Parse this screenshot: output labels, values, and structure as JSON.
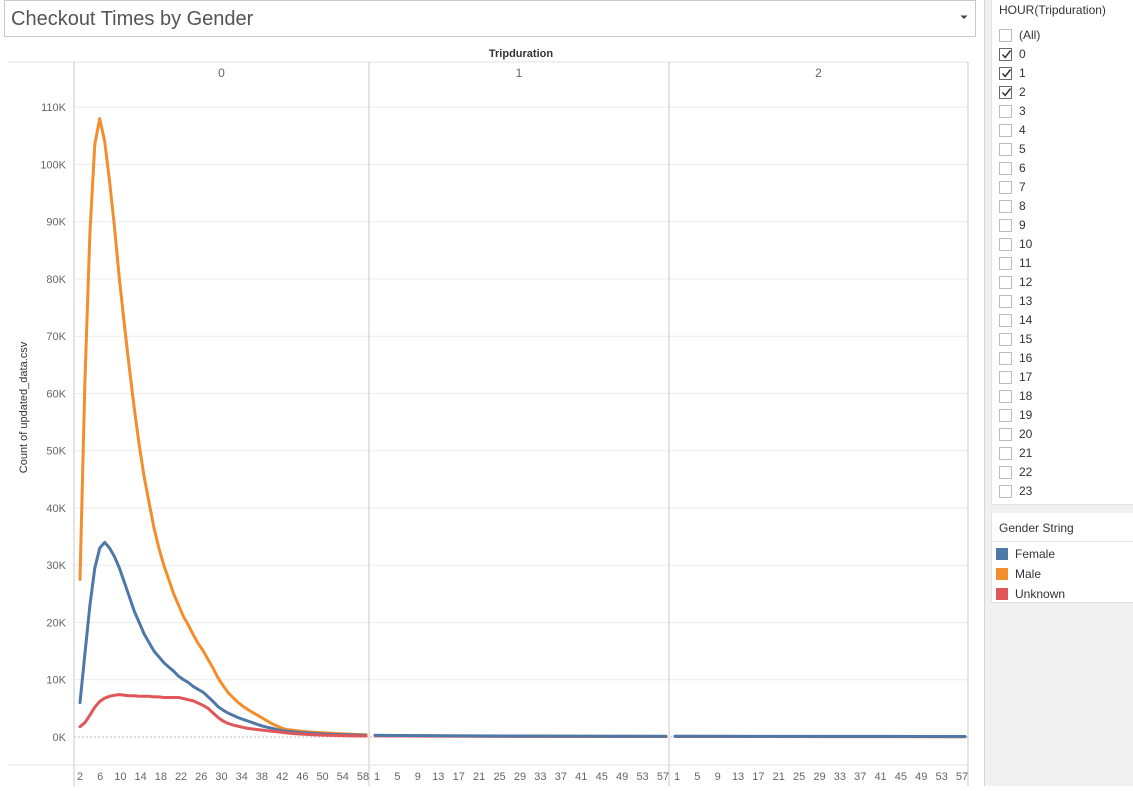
{
  "title": {
    "text": "Checkout Times by Gender",
    "dropdown_icon": "caret-down-icon"
  },
  "filter": {
    "title": "HOUR(Tripduration)",
    "items": [
      {
        "label": "(All)",
        "checked": false
      },
      {
        "label": "0",
        "checked": true
      },
      {
        "label": "1",
        "checked": true
      },
      {
        "label": "2",
        "checked": true
      },
      {
        "label": "3",
        "checked": false
      },
      {
        "label": "4",
        "checked": false
      },
      {
        "label": "5",
        "checked": false
      },
      {
        "label": "6",
        "checked": false
      },
      {
        "label": "7",
        "checked": false
      },
      {
        "label": "8",
        "checked": false
      },
      {
        "label": "9",
        "checked": false
      },
      {
        "label": "10",
        "checked": false
      },
      {
        "label": "11",
        "checked": false
      },
      {
        "label": "12",
        "checked": false
      },
      {
        "label": "13",
        "checked": false
      },
      {
        "label": "14",
        "checked": false
      },
      {
        "label": "15",
        "checked": false
      },
      {
        "label": "16",
        "checked": false
      },
      {
        "label": "17",
        "checked": false
      },
      {
        "label": "18",
        "checked": false
      },
      {
        "label": "19",
        "checked": false
      },
      {
        "label": "20",
        "checked": false
      },
      {
        "label": "21",
        "checked": false
      },
      {
        "label": "22",
        "checked": false
      },
      {
        "label": "23",
        "checked": false
      }
    ]
  },
  "legend": {
    "title": "Gender String",
    "items": [
      {
        "label": "Female",
        "color": "#4e79a7"
      },
      {
        "label": "Male",
        "color": "#f28e2b"
      },
      {
        "label": "Unknown",
        "color": "#e15759"
      }
    ]
  },
  "chart_data": {
    "type": "line",
    "title": "Checkout Times by Gender",
    "header_label": "Tripduration",
    "ylabel": "Count of updated_data.csv",
    "ylim": [
      0,
      113000
    ],
    "yticks": [
      0,
      10000,
      20000,
      30000,
      40000,
      50000,
      60000,
      70000,
      80000,
      90000,
      100000,
      110000
    ],
    "ytick_labels": [
      "0K",
      "10K",
      "20K",
      "30K",
      "40K",
      "50K",
      "60K",
      "70K",
      "80K",
      "90K",
      "100K",
      "110K"
    ],
    "grid": true,
    "panels": [
      {
        "label": "0",
        "x_range": [
          1,
          59
        ],
        "xtick_labels": [
          "2",
          "6",
          "10",
          "14",
          "18",
          "22",
          "26",
          "30",
          "34",
          "38",
          "42",
          "46",
          "50",
          "54",
          "58"
        ],
        "series": [
          {
            "name": "Male",
            "color": "#f28e2b",
            "x": [
              1,
              2,
              3,
              4,
              5,
              6,
              7,
              8,
              9,
              10,
              11,
              12,
              13,
              14,
              15,
              16,
              17,
              18,
              19,
              20,
              21,
              22,
              23,
              24,
              25,
              26,
              27,
              28,
              29,
              30,
              31,
              32,
              33,
              34,
              35,
              36,
              37,
              38,
              39,
              40,
              41,
              42,
              43,
              44,
              45,
              46,
              47,
              48,
              49,
              50,
              51,
              52,
              53,
              54,
              55,
              56,
              57,
              58,
              59
            ],
            "y": [
              27500,
              62000,
              88000,
              103500,
              108000,
              104000,
              97000,
              89000,
              80000,
              72000,
              64500,
              57500,
              51000,
              45500,
              41000,
              36500,
              33000,
              30000,
              27500,
              25000,
              23000,
              21000,
              19500,
              17800,
              16300,
              15000,
              13500,
              12000,
              10300,
              9000,
              7800,
              6900,
              6100,
              5400,
              4800,
              4300,
              3800,
              3300,
              2800,
              2300,
              1900,
              1500,
              1300,
              1200,
              1100,
              1000,
              900,
              850,
              800,
              750,
              700,
              650,
              600,
              560,
              520,
              480,
              450,
              420,
              400
            ]
          },
          {
            "name": "Female",
            "color": "#4e79a7",
            "x": [
              1,
              2,
              3,
              4,
              5,
              6,
              7,
              8,
              9,
              10,
              11,
              12,
              13,
              14,
              15,
              16,
              17,
              18,
              19,
              20,
              21,
              22,
              23,
              24,
              25,
              26,
              27,
              28,
              29,
              30,
              31,
              32,
              33,
              34,
              35,
              36,
              37,
              38,
              39,
              40,
              41,
              42,
              43,
              44,
              45,
              46,
              47,
              48,
              49,
              50,
              51,
              52,
              53,
              54,
              55,
              56,
              57,
              58,
              59
            ],
            "y": [
              6000,
              14500,
              23000,
              29500,
              33000,
              34000,
              33000,
              31500,
              29500,
              27000,
              24500,
              22000,
              20000,
              18000,
              16500,
              15000,
              14000,
              13000,
              12200,
              11500,
              10600,
              10000,
              9500,
              8800,
              8300,
              7800,
              7000,
              6200,
              5300,
              4700,
              4200,
              3800,
              3400,
              3100,
              2800,
              2500,
              2200,
              1900,
              1700,
              1500,
              1300,
              1100,
              1000,
              900,
              800,
              750,
              700,
              650,
              600,
              550,
              500,
              460,
              430,
              400,
              380,
              360,
              340,
              320,
              300
            ]
          },
          {
            "name": "Unknown",
            "color": "#e15759",
            "x": [
              1,
              2,
              3,
              4,
              5,
              6,
              7,
              8,
              9,
              10,
              11,
              12,
              13,
              14,
              15,
              16,
              17,
              18,
              19,
              20,
              21,
              22,
              23,
              24,
              25,
              26,
              27,
              28,
              29,
              30,
              31,
              32,
              33,
              34,
              35,
              36,
              37,
              38,
              39,
              40,
              41,
              42,
              43,
              44,
              45,
              46,
              47,
              48,
              49,
              50,
              51,
              52,
              53,
              54,
              55,
              56,
              57,
              58,
              59
            ],
            "y": [
              1800,
              2500,
              3800,
              5200,
              6200,
              6800,
              7100,
              7300,
              7400,
              7300,
              7200,
              7200,
              7100,
              7100,
              7100,
              7000,
              7000,
              6900,
              6900,
              6900,
              6900,
              6700,
              6500,
              6300,
              5900,
              5500,
              5000,
              4200,
              3400,
              2800,
              2400,
              2100,
              1900,
              1700,
              1500,
              1400,
              1300,
              1200,
              1100,
              1000,
              900,
              800,
              700,
              620,
              560,
              500,
              450,
              400,
              360,
              330,
              300,
              280,
              260,
              240,
              220,
              200,
              190,
              180,
              170
            ]
          }
        ]
      },
      {
        "label": "1",
        "x_range": [
          0,
          59
        ],
        "xtick_labels": [
          "1",
          "5",
          "9",
          "13",
          "17",
          "21",
          "25",
          "29",
          "33",
          "37",
          "41",
          "45",
          "49",
          "53",
          "57"
        ],
        "series": [
          {
            "name": "Male",
            "color": "#f28e2b",
            "x": [
              0,
              10,
              20,
              30,
              40,
              50,
              59
            ],
            "y": [
              250,
              200,
              160,
              130,
              110,
              100,
              90
            ]
          },
          {
            "name": "Unknown",
            "color": "#e15759",
            "x": [
              0,
              10,
              20,
              30,
              40,
              50,
              59
            ],
            "y": [
              200,
              160,
              130,
              110,
              95,
              85,
              80
            ]
          },
          {
            "name": "Female",
            "color": "#4e79a7",
            "x": [
              0,
              10,
              20,
              30,
              40,
              50,
              59
            ],
            "y": [
              300,
              250,
              200,
              170,
              150,
              130,
              120
            ]
          }
        ]
      },
      {
        "label": "2",
        "x_range": [
          0,
          59
        ],
        "xtick_labels": [
          "1",
          "5",
          "9",
          "13",
          "17",
          "21",
          "25",
          "29",
          "33",
          "37",
          "41",
          "45",
          "49",
          "53",
          "57"
        ],
        "series": [
          {
            "name": "Male",
            "color": "#f28e2b",
            "x": [
              0,
              10,
              20,
              30,
              40,
              50,
              59
            ],
            "y": [
              100,
              95,
              90,
              85,
              80,
              75,
              70
            ]
          },
          {
            "name": "Unknown",
            "color": "#e15759",
            "x": [
              0,
              10,
              20,
              30,
              40,
              50,
              59
            ],
            "y": [
              90,
              85,
              80,
              75,
              70,
              65,
              60
            ]
          },
          {
            "name": "Female",
            "color": "#4e79a7",
            "x": [
              0,
              10,
              20,
              30,
              40,
              50,
              59
            ],
            "y": [
              120,
              115,
              110,
              105,
              100,
              95,
              90
            ]
          }
        ]
      }
    ]
  }
}
